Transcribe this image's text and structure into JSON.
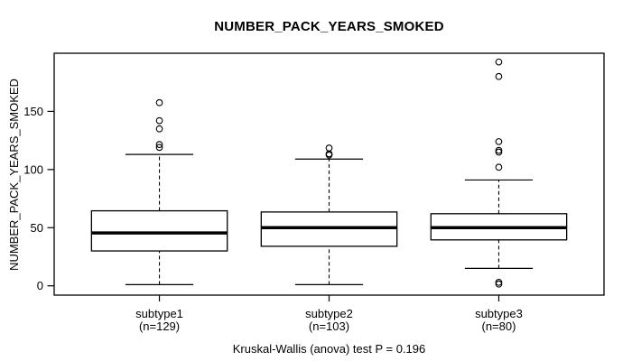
{
  "chart_data": {
    "type": "boxplot",
    "title": "NUMBER_PACK_YEARS_SMOKED",
    "ylabel": "NUMBER_PACK_YEARS_SMOKED",
    "xlabel": "",
    "caption": "Kruskal-Wallis (anova) test P = 0.196",
    "p_value": 0.196,
    "test": "Kruskal-Wallis (anova)",
    "y_ticks": [
      0,
      50,
      100,
      150
    ],
    "ylim": [
      -8,
      200
    ],
    "xlim": [
      0.38,
      3.62
    ],
    "box_width": 0.8,
    "staple_width": 0.4,
    "grid": false,
    "groups": [
      {
        "label": "subtype1",
        "sublabel": "(n=129)",
        "n": 129,
        "position": 1,
        "whisker_low": 1,
        "q1": 30,
        "median": 45.5,
        "q3": 64.5,
        "whisker_high": 113,
        "outliers": [
          119,
          121.5,
          135,
          142,
          157.5
        ]
      },
      {
        "label": "subtype2",
        "sublabel": "(n=103)",
        "n": 103,
        "position": 2,
        "whisker_low": 1,
        "q1": 34,
        "median": 50,
        "q3": 63.5,
        "whisker_high": 109,
        "outliers": [
          112.5,
          113.5,
          118.5
        ]
      },
      {
        "label": "subtype3",
        "sublabel": "(n=80)",
        "n": 80,
        "position": 3,
        "whisker_low": 15,
        "q1": 39.5,
        "median": 50,
        "q3": 62,
        "whisker_high": 91,
        "outliers": [
          1.5,
          3,
          102,
          115,
          116.5,
          124,
          180,
          192.5
        ]
      }
    ],
    "colors": {
      "stroke": "#000000",
      "background": "#ffffff"
    }
  }
}
